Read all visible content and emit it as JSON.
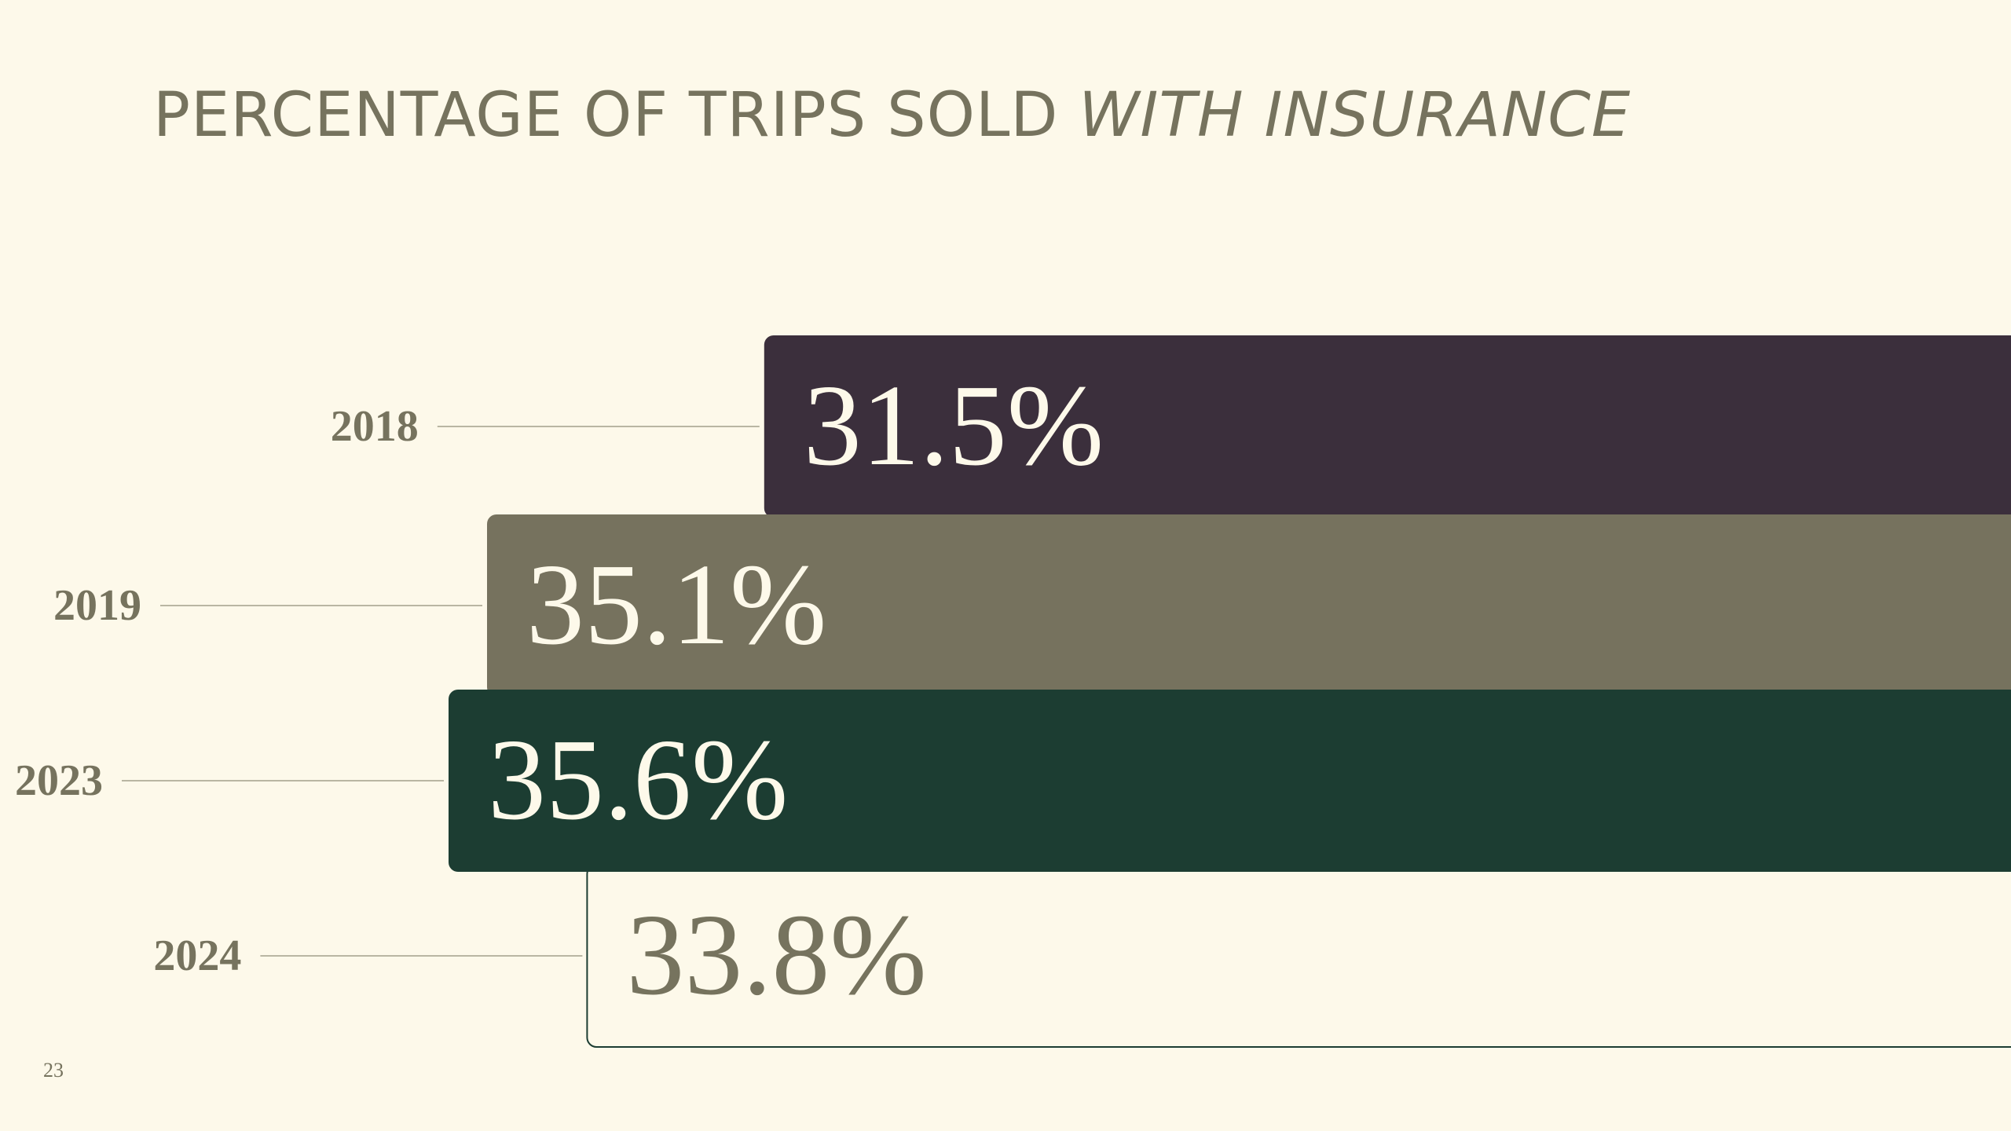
{
  "slide": {
    "title_plain": "PERCENTAGE OF TRIPS SOLD ",
    "title_emphasis": "WITH INSURANCE",
    "page_number": "23"
  },
  "colors": {
    "background": "#fdf9ea",
    "text_muted": "#76735e",
    "bar_2018": "#3b2f3c",
    "bar_2019": "#76725e",
    "bar_2023": "#1c3d32",
    "bar_2024_fill": "#fdf9ea",
    "bar_2024_border": "#1c3d32",
    "leader_line": "#b9b6a3",
    "value_light": "#fdf9ea",
    "value_dark": "#76735e"
  },
  "chart_data": {
    "type": "bar",
    "orientation": "horizontal",
    "title": "PERCENTAGE OF TRIPS SOLD WITH INSURANCE",
    "categories": [
      "2018",
      "2019",
      "2023",
      "2024"
    ],
    "values": [
      31.5,
      35.1,
      35.6,
      33.8
    ],
    "value_labels": [
      "31.5%",
      "35.1%",
      "35.6%",
      "33.8%"
    ],
    "unit": "%",
    "xlabel": "",
    "ylabel": "",
    "grid": false,
    "legend": "none"
  }
}
